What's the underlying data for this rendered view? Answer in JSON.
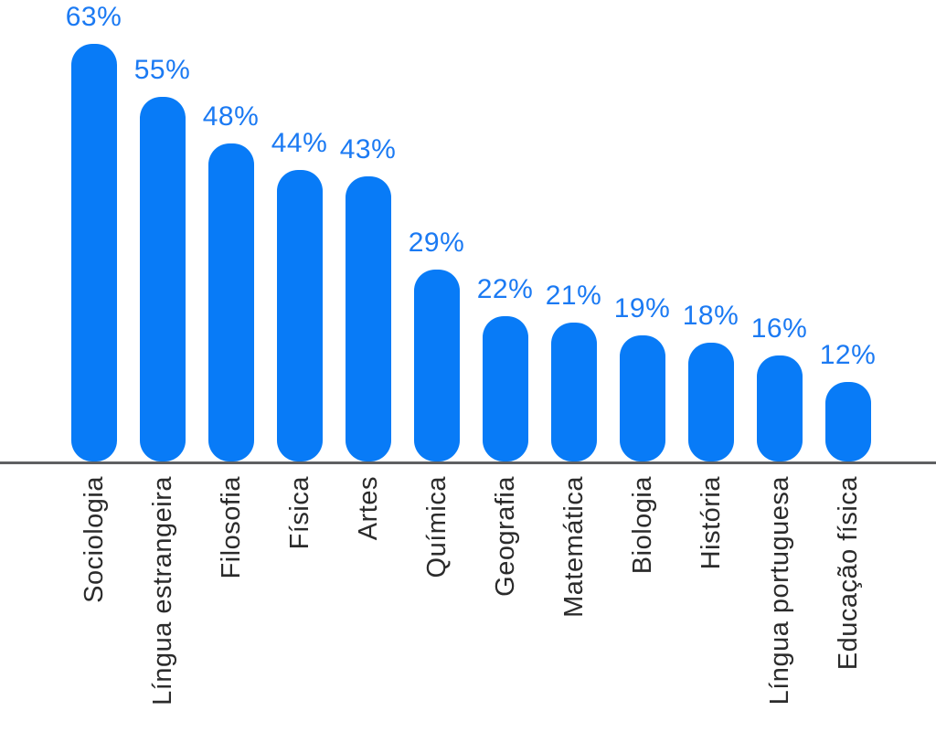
{
  "chart_data": {
    "type": "bar",
    "orientation": "vertical",
    "title": "",
    "xlabel": "",
    "ylabel": "",
    "categories": [
      "Sociologia",
      "Língua estrangeira",
      "Filosofia",
      "Física",
      "Artes",
      "Química",
      "Geografia",
      "Matemática",
      "Biologia",
      "História",
      "Língua portuguesa",
      "Educação física"
    ],
    "values": [
      63,
      55,
      48,
      44,
      43,
      29,
      22,
      21,
      19,
      18,
      16,
      12
    ],
    "value_labels": [
      "63%",
      "55%",
      "48%",
      "44%",
      "43%",
      "29%",
      "22%",
      "21%",
      "19%",
      "18%",
      "16%",
      "12%"
    ],
    "ylim": [
      0,
      70
    ],
    "grid": false,
    "legend": false,
    "bar_color": "#087bf7",
    "value_label_color": "#1b7af3",
    "category_label_color": "#2b2b2b",
    "axis_line_color": "#5f6062"
  }
}
